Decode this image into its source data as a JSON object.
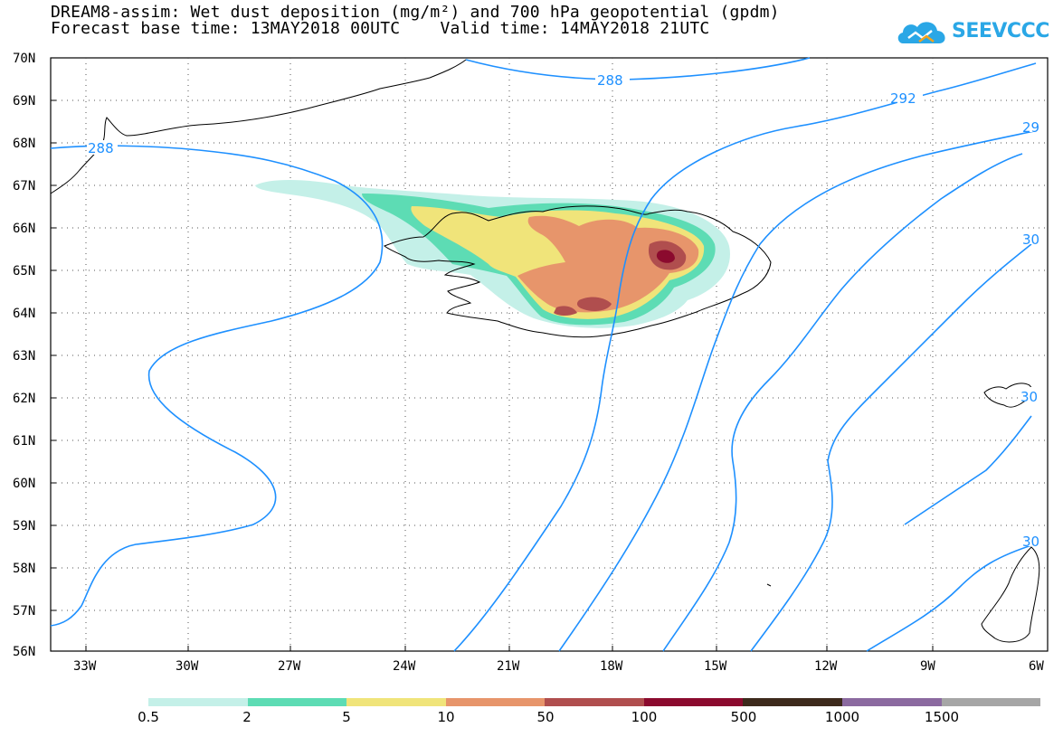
{
  "title_line1": "DREAM8-assim: Wet dust deposition (mg/m²) and 700 hPa geopotential (gpdm)",
  "title_line2": "Forecast base time: 13MAY2018 00UTC    Valid time: 14MAY2018 21UTC",
  "logo_text": "SEEVCCC",
  "map": {
    "lon_labels": [
      "33W",
      "30W",
      "27W",
      "24W",
      "21W",
      "18W",
      "15W",
      "12W",
      "9W",
      "6W"
    ],
    "lat_labels": [
      "70N",
      "69N",
      "68N",
      "67N",
      "66N",
      "65N",
      "64N",
      "63N",
      "62N",
      "61N",
      "60N",
      "59N",
      "58N",
      "57N",
      "56N"
    ],
    "contour_labels": [
      "288",
      "292",
      "29",
      "288",
      "30",
      "30",
      "30"
    ]
  },
  "legend": {
    "colors": [
      "#c4f0e8",
      "#5ddcb4",
      "#f0e47a",
      "#e7956b",
      "#b04e4e",
      "#8b0a2e",
      "#3d2a1c",
      "#8b6aa0",
      "#a6a6a6"
    ],
    "labels": [
      "0.5",
      "2",
      "5",
      "10",
      "50",
      "100",
      "500",
      "1000",
      "1500"
    ]
  }
}
